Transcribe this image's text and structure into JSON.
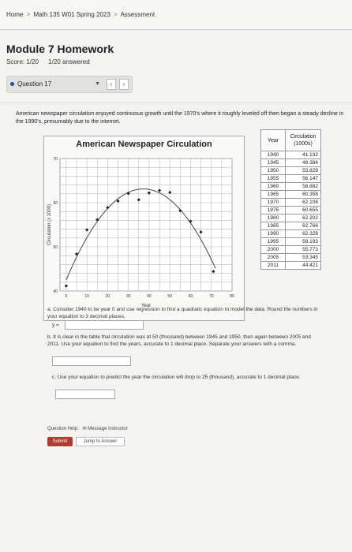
{
  "breadcrumb": [
    "Home",
    "Math 135 W01 Spring 2023",
    "Assessment"
  ],
  "breadcrumb_sep": ">",
  "page": {
    "title": "Module 7 Homework",
    "score": "Score: 1/20",
    "answered": "1/20 answered"
  },
  "question_nav": {
    "selected": "Question 17",
    "prev": "‹",
    "next": "›"
  },
  "prompt": "American newspaper circulation enjoyed continuous growth until the 1970's where it roughly leveled off then began a steady decline in the 1990's, presumably due to the internet.",
  "chart_data": {
    "type": "scatter",
    "title": "American Newspaper Circulation",
    "xlabel": "Year",
    "ylabel": "Circulation (x 1000)",
    "x_ticks": [
      "0",
      "10",
      "20",
      "30",
      "40",
      "50",
      "60",
      "70",
      "80"
    ],
    "y_ticks": [
      "40",
      "50",
      "60",
      "70"
    ],
    "xlim": [
      -3,
      80
    ],
    "ylim": [
      40,
      70
    ],
    "grid": true,
    "points": [
      {
        "x": 0,
        "y": 41.132
      },
      {
        "x": 5,
        "y": 48.384
      },
      {
        "x": 10,
        "y": 53.829
      },
      {
        "x": 15,
        "y": 56.147
      },
      {
        "x": 20,
        "y": 58.882
      },
      {
        "x": 25,
        "y": 60.358
      },
      {
        "x": 30,
        "y": 62.108
      },
      {
        "x": 35,
        "y": 60.655
      },
      {
        "x": 40,
        "y": 62.202
      },
      {
        "x": 45,
        "y": 62.766
      },
      {
        "x": 50,
        "y": 62.328
      },
      {
        "x": 55,
        "y": 58.193
      },
      {
        "x": 60,
        "y": 55.773
      },
      {
        "x": 65,
        "y": 53.345
      },
      {
        "x": 71,
        "y": 44.421
      }
    ]
  },
  "table": {
    "year_header": "Year",
    "circ_header_1": "Circulation",
    "circ_header_2": "(1000s)",
    "rows": [
      {
        "year": "1940",
        "value": "41.132"
      },
      {
        "year": "1945",
        "value": "48.384"
      },
      {
        "year": "1950",
        "value": "53.829"
      },
      {
        "year": "1955",
        "value": "56.147"
      },
      {
        "year": "1960",
        "value": "58.882"
      },
      {
        "year": "1965",
        "value": "60.358"
      },
      {
        "year": "1970",
        "value": "62.108"
      },
      {
        "year": "1975",
        "value": "60.655"
      },
      {
        "year": "1980",
        "value": "62.202"
      },
      {
        "year": "1985",
        "value": "62.766"
      },
      {
        "year": "1990",
        "value": "62.328"
      },
      {
        "year": "1995",
        "value": "58.193"
      },
      {
        "year": "2000",
        "value": "55.773"
      },
      {
        "year": "2005",
        "value": "53.345"
      },
      {
        "year": "2011",
        "value": "44.421"
      }
    ]
  },
  "parts": {
    "a": "a. Consider 1940 to be year 0 and use regression to find a quadratic equation to model the data. Round the numbers in your equation to 3 decimal places.",
    "a_lhs": "y =",
    "b": "b. It is clear in the table that circulation was at 50 (thousand) between 1945 and 1950, then again between 2005 and 2011. Use your equation to find the years, accurate to 1 decimal place. Separate your answers with a comma.",
    "c": "c. Use your equation to predict the year the circulation will drop to 25 (thousand), accurate to 1 decimal place."
  },
  "footer": {
    "help_label": "Question Help:",
    "message_instructor": "Message instructor",
    "submit": "Submit",
    "jump": "Jump to Answer"
  },
  "colors": {
    "accent": "#1a4fa0",
    "submit": "#b23a2e"
  }
}
